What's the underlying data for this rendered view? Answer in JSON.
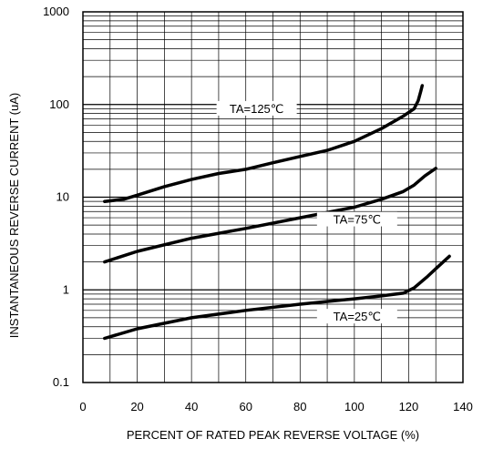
{
  "chart_data": {
    "type": "line",
    "xlabel": "PERCENT OF RATED PEAK REVERSE VOLTAGE (%)",
    "ylabel": "INSTANTANEOUS REVERSE CURRENT (uA)",
    "xlim": [
      0,
      140
    ],
    "ylim": [
      0.1,
      1000
    ],
    "yscale": "log",
    "grid": true,
    "x_ticks": [
      "0",
      "20",
      "40",
      "60",
      "80",
      "100",
      "120",
      "140"
    ],
    "y_ticks": [
      "0.1",
      "1",
      "10",
      "100",
      "1000"
    ],
    "series": [
      {
        "name": "TA=125℃",
        "x": [
          8,
          15,
          20,
          30,
          40,
          50,
          60,
          70,
          80,
          90,
          100,
          110,
          118,
          122,
          123.5,
          124.5,
          125
        ],
        "y": [
          9,
          9.5,
          10.5,
          13,
          15.5,
          18,
          20,
          23.5,
          27.5,
          32,
          40,
          55,
          75,
          90,
          110,
          140,
          160
        ]
      },
      {
        "name": "TA=75℃",
        "x": [
          8,
          20,
          40,
          60,
          80,
          100,
          110,
          118,
          122,
          126,
          130
        ],
        "y": [
          2,
          2.6,
          3.6,
          4.6,
          6,
          7.8,
          9.5,
          11.5,
          13.5,
          17,
          20.5
        ]
      },
      {
        "name": "TA=25℃",
        "x": [
          8,
          20,
          40,
          60,
          80,
          100,
          110,
          118,
          122,
          127,
          131,
          135
        ],
        "y": [
          0.3,
          0.38,
          0.5,
          0.6,
          0.7,
          0.8,
          0.86,
          0.92,
          1.05,
          1.4,
          1.8,
          2.3
        ]
      }
    ]
  }
}
